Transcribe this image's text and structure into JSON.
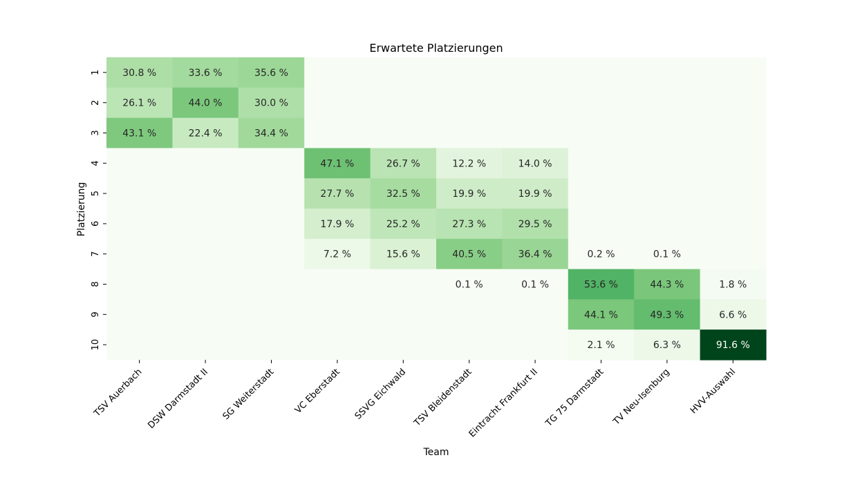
{
  "chart_data": {
    "type": "heatmap",
    "title": "Erwartete Platzierungen",
    "xlabel": "Team",
    "ylabel": "Platzierung",
    "x_categories": [
      "TSV Auerbach",
      "DSW Darmstadt II",
      "SG Weiterstadt",
      "VC Eberstadt",
      "SSVG Eichwald",
      "TSV Bleidenstadt",
      "Eintracht Frankfurt II",
      "TG 75 Darmstadt",
      "TV Neu-Isenburg",
      "HVV-Auswahl"
    ],
    "y_categories": [
      "1",
      "2",
      "3",
      "4",
      "5",
      "6",
      "7",
      "8",
      "9",
      "10"
    ],
    "value_suffix": " %",
    "color_scale": "Greens",
    "vmin": 0,
    "vmax": 91.6,
    "values": [
      [
        30.8,
        33.6,
        35.6,
        null,
        null,
        null,
        null,
        null,
        null,
        null
      ],
      [
        26.1,
        44.0,
        30.0,
        null,
        null,
        null,
        null,
        null,
        null,
        null
      ],
      [
        43.1,
        22.4,
        34.4,
        null,
        null,
        null,
        null,
        null,
        null,
        null
      ],
      [
        null,
        null,
        null,
        47.1,
        26.7,
        12.2,
        14.0,
        null,
        null,
        null
      ],
      [
        null,
        null,
        null,
        27.7,
        32.5,
        19.9,
        19.9,
        null,
        null,
        null
      ],
      [
        null,
        null,
        null,
        17.9,
        25.2,
        27.3,
        29.5,
        null,
        null,
        null
      ],
      [
        null,
        null,
        null,
        7.2,
        15.6,
        40.5,
        36.4,
        0.2,
        0.1,
        null
      ],
      [
        null,
        null,
        null,
        null,
        null,
        0.1,
        0.1,
        53.6,
        44.3,
        1.8
      ],
      [
        null,
        null,
        null,
        null,
        null,
        null,
        null,
        44.1,
        49.3,
        6.6
      ],
      [
        null,
        null,
        null,
        null,
        null,
        null,
        null,
        2.1,
        6.3,
        91.6
      ]
    ]
  }
}
